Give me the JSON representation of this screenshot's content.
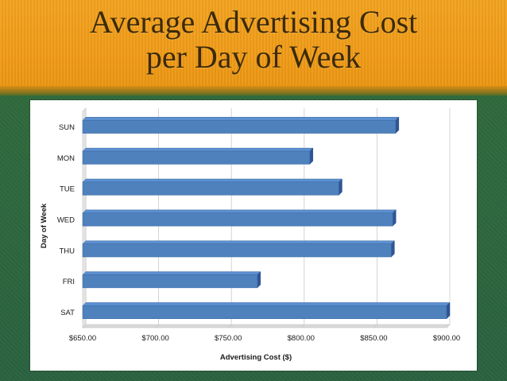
{
  "slide": {
    "title_line1": "Average Advertising Cost",
    "title_line2": "per Day of Week"
  },
  "colors": {
    "bar_face": "#4f81bd",
    "bar_top": "#5b8fd0",
    "bar_side": "#2f5597",
    "grid": "#c9c9c9"
  },
  "chart_data": {
    "type": "bar",
    "orientation": "horizontal",
    "categories": [
      "SUN",
      "MON",
      "TUE",
      "WED",
      "THU",
      "FRI",
      "SAT"
    ],
    "values": [
      865,
      806,
      826,
      863,
      862,
      770,
      900
    ],
    "xlabel": "Advertising Cost ($)",
    "ylabel": "Day of Week",
    "xlim": [
      650,
      900
    ],
    "xticks": [
      650,
      700,
      750,
      800,
      850,
      900
    ],
    "xtick_labels": [
      "$650.00",
      "$700.00",
      "$750.00",
      "$800.00",
      "$850.00",
      "$900.00"
    ],
    "grid": true,
    "legend": "none"
  }
}
